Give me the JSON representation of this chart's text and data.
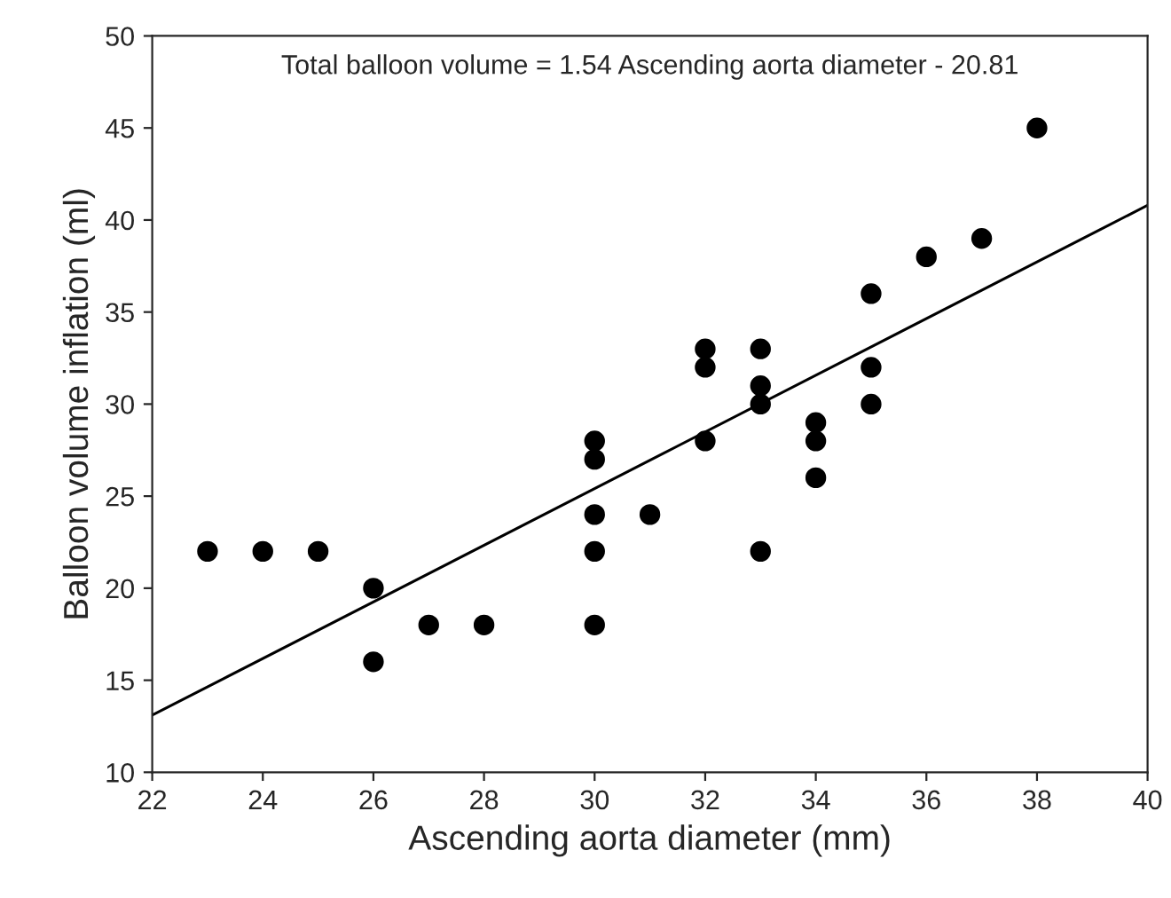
{
  "chart_data": {
    "type": "scatter",
    "xlabel": "Ascending aorta diameter (mm)",
    "ylabel": "Balloon volume inflation (ml)",
    "annotations": [
      "Total balloon volume = 1.54 Ascending aorta diameter - 20.81"
    ],
    "series": [
      {
        "color": "#000000",
        "marker": "circle",
        "x": [
          23,
          24,
          25,
          26,
          26,
          27,
          28,
          30,
          30,
          30,
          30,
          30,
          31,
          32,
          32,
          32,
          33,
          33,
          33,
          33,
          34,
          34,
          34,
          35,
          35,
          35,
          36,
          37,
          38
        ],
        "values": [
          22,
          22,
          22,
          20,
          16,
          18,
          18,
          28,
          27,
          24,
          22,
          18,
          24,
          33,
          32,
          28,
          33,
          31,
          30,
          22,
          29,
          28,
          26,
          36,
          32,
          30,
          38,
          39,
          45
        ]
      },
      {
        "type": "line",
        "color": "#000000",
        "marker": "none",
        "x": [
          22,
          40
        ],
        "values": [
          13.1,
          40.8
        ]
      }
    ],
    "xlim": [
      22,
      40
    ],
    "xticks": [
      22,
      24,
      26,
      28,
      30,
      32,
      34,
      36,
      38,
      40
    ],
    "ylim": [
      10,
      50
    ],
    "yticks": [
      10,
      15,
      20,
      25,
      30,
      35,
      40,
      45,
      50
    ],
    "grid": false,
    "legend": false
  }
}
